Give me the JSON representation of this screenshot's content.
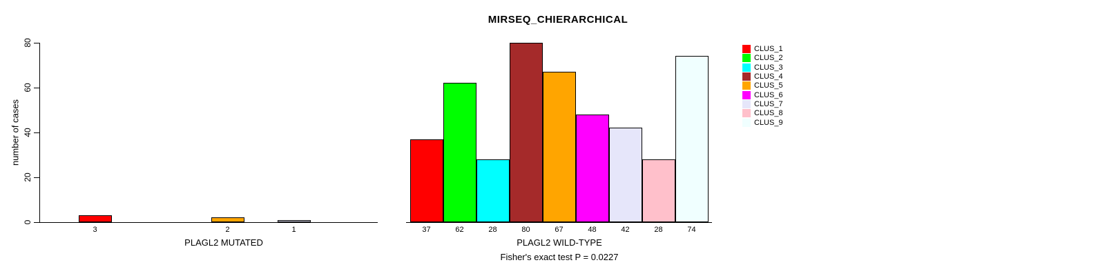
{
  "title": "MIRSEQ_CHIERARCHICAL",
  "annotation": "Fisher's exact test P = 0.0227",
  "y_axis": {
    "label": "number of cases",
    "ticks": [
      0,
      20,
      40,
      60,
      80
    ],
    "lim": [
      0,
      80
    ]
  },
  "legend": {
    "position": "right",
    "items": [
      {
        "label": "CLUS_1",
        "color": "#FF0000"
      },
      {
        "label": "CLUS_2",
        "color": "#00FF00"
      },
      {
        "label": "CLUS_3",
        "color": "#00FFFF"
      },
      {
        "label": "CLUS_4",
        "color": "#A52A2A"
      },
      {
        "label": "CLUS_5",
        "color": "#FFA500"
      },
      {
        "label": "CLUS_6",
        "color": "#FF00FF"
      },
      {
        "label": "CLUS_7",
        "color": "#E6E6FA"
      },
      {
        "label": "CLUS_8",
        "color": "#FFC0CB"
      },
      {
        "label": "CLUS_9",
        "color": "#F0FFFF"
      }
    ]
  },
  "chart_data": [
    {
      "type": "bar",
      "xlabel": "PLAGL2 MUTATED",
      "ylabel": "number of cases",
      "ylim": [
        0,
        80
      ],
      "grid": false,
      "categories": [
        "CLUS_1",
        "CLUS_2",
        "CLUS_3",
        "CLUS_4",
        "CLUS_5",
        "CLUS_6",
        "CLUS_7",
        "CLUS_8",
        "CLUS_9"
      ],
      "values": [
        3,
        0,
        0,
        0,
        2,
        0,
        1,
        0,
        0
      ],
      "bar_value_labels": [
        "3",
        "",
        "",
        "",
        "2",
        "",
        "1",
        "",
        ""
      ]
    },
    {
      "type": "bar",
      "xlabel": "PLAGL2 WILD-TYPE",
      "ylabel": "number of cases",
      "ylim": [
        0,
        80
      ],
      "grid": false,
      "categories": [
        "CLUS_1",
        "CLUS_2",
        "CLUS_3",
        "CLUS_4",
        "CLUS_5",
        "CLUS_6",
        "CLUS_7",
        "CLUS_8",
        "CLUS_9"
      ],
      "values": [
        37,
        62,
        28,
        80,
        67,
        48,
        42,
        28,
        74
      ],
      "bar_value_labels": [
        "37",
        "62",
        "28",
        "80",
        "67",
        "48",
        "42",
        "28",
        "74"
      ]
    }
  ]
}
